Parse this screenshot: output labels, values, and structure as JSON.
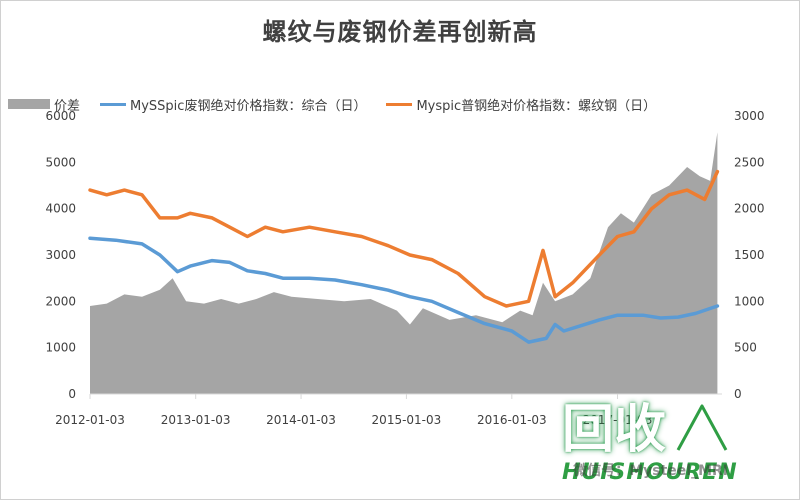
{
  "title": "螺纹与废钢价差再创新高",
  "watermark": {
    "logo_text": "回收",
    "brand": "HUISHOUREN",
    "caption": "微信号：Mysteel_MRI"
  },
  "chart_data": {
    "type": "area+line",
    "title": "螺纹与废钢价差再创新高",
    "legend_position": "top",
    "grid": false,
    "x_tick_labels": [
      "2012-01-03",
      "2013-01-03",
      "2014-01-03",
      "2015-01-03",
      "2016-01-03",
      "2017-01-03"
    ],
    "x_range": [
      "2012-01-03",
      "2017-12-31"
    ],
    "y_left": {
      "range": [
        0,
        6000
      ],
      "ticks": [
        0,
        1000,
        2000,
        3000,
        4000,
        5000,
        6000
      ]
    },
    "y_right": {
      "range": [
        0,
        3000
      ],
      "ticks": [
        0,
        500,
        1000,
        1500,
        2000,
        2500,
        3000
      ]
    },
    "series": [
      {
        "name": "价差",
        "kind": "area",
        "axis": "left",
        "color": "#a5a5a5",
        "points": [
          [
            "2012-01-03",
            1900
          ],
          [
            "2012-03-01",
            1950
          ],
          [
            "2012-05-01",
            2150
          ],
          [
            "2012-07-01",
            2100
          ],
          [
            "2012-09-01",
            2250
          ],
          [
            "2012-10-15",
            2500
          ],
          [
            "2012-12-01",
            2000
          ],
          [
            "2013-02-01",
            1950
          ],
          [
            "2013-04-01",
            2050
          ],
          [
            "2013-06-01",
            1950
          ],
          [
            "2013-08-01",
            2050
          ],
          [
            "2013-10-01",
            2200
          ],
          [
            "2013-12-01",
            2100
          ],
          [
            "2014-03-01",
            2050
          ],
          [
            "2014-06-01",
            2000
          ],
          [
            "2014-09-01",
            2050
          ],
          [
            "2014-12-01",
            1800
          ],
          [
            "2015-01-15",
            1500
          ],
          [
            "2015-03-01",
            1850
          ],
          [
            "2015-06-01",
            1600
          ],
          [
            "2015-09-01",
            1700
          ],
          [
            "2015-12-01",
            1550
          ],
          [
            "2016-02-01",
            1800
          ],
          [
            "2016-03-15",
            1700
          ],
          [
            "2016-04-20",
            2400
          ],
          [
            "2016-06-01",
            2000
          ],
          [
            "2016-08-01",
            2150
          ],
          [
            "2016-10-01",
            2500
          ],
          [
            "2016-12-01",
            3600
          ],
          [
            "2017-01-15",
            3900
          ],
          [
            "2017-03-01",
            3700
          ],
          [
            "2017-05-01",
            4300
          ],
          [
            "2017-07-01",
            4500
          ],
          [
            "2017-09-01",
            4900
          ],
          [
            "2017-10-15",
            4700
          ],
          [
            "2017-11-20",
            4600
          ],
          [
            "2017-12-15",
            5650
          ]
        ]
      },
      {
        "name": "MySSpic废钢绝对价格指数：综合（日）",
        "kind": "line",
        "axis": "right",
        "color": "#5b9bd5",
        "points": [
          [
            "2012-01-03",
            1680
          ],
          [
            "2012-04-01",
            1660
          ],
          [
            "2012-07-01",
            1620
          ],
          [
            "2012-09-01",
            1500
          ],
          [
            "2012-11-01",
            1320
          ],
          [
            "2012-12-15",
            1380
          ],
          [
            "2013-03-01",
            1440
          ],
          [
            "2013-05-01",
            1420
          ],
          [
            "2013-07-01",
            1330
          ],
          [
            "2013-09-01",
            1300
          ],
          [
            "2013-11-01",
            1250
          ],
          [
            "2014-02-01",
            1250
          ],
          [
            "2014-05-01",
            1230
          ],
          [
            "2014-08-01",
            1180
          ],
          [
            "2014-11-01",
            1120
          ],
          [
            "2015-01-15",
            1050
          ],
          [
            "2015-04-01",
            1000
          ],
          [
            "2015-07-01",
            880
          ],
          [
            "2015-10-01",
            760
          ],
          [
            "2016-01-03",
            680
          ],
          [
            "2016-03-01",
            560
          ],
          [
            "2016-05-01",
            600
          ],
          [
            "2016-06-01",
            750
          ],
          [
            "2016-07-01",
            680
          ],
          [
            "2016-09-01",
            740
          ],
          [
            "2016-11-01",
            800
          ],
          [
            "2017-01-03",
            850
          ],
          [
            "2017-04-01",
            850
          ],
          [
            "2017-06-01",
            820
          ],
          [
            "2017-08-01",
            830
          ],
          [
            "2017-10-01",
            870
          ],
          [
            "2017-12-15",
            950
          ]
        ]
      },
      {
        "name": "Myspic普钢绝对价格指数：螺纹钢（日）",
        "kind": "line",
        "axis": "right",
        "color": "#ed7d31",
        "points": [
          [
            "2012-01-03",
            2200
          ],
          [
            "2012-03-01",
            2150
          ],
          [
            "2012-05-01",
            2200
          ],
          [
            "2012-07-01",
            2150
          ],
          [
            "2012-09-01",
            1900
          ],
          [
            "2012-11-01",
            1900
          ],
          [
            "2012-12-15",
            1950
          ],
          [
            "2013-03-01",
            1900
          ],
          [
            "2013-05-01",
            1800
          ],
          [
            "2013-07-01",
            1700
          ],
          [
            "2013-09-01",
            1800
          ],
          [
            "2013-11-01",
            1750
          ],
          [
            "2014-02-01",
            1800
          ],
          [
            "2014-05-01",
            1750
          ],
          [
            "2014-08-01",
            1700
          ],
          [
            "2014-11-01",
            1600
          ],
          [
            "2015-01-15",
            1500
          ],
          [
            "2015-04-01",
            1450
          ],
          [
            "2015-07-01",
            1300
          ],
          [
            "2015-10-01",
            1050
          ],
          [
            "2015-12-15",
            950
          ],
          [
            "2016-03-01",
            1000
          ],
          [
            "2016-04-20",
            1550
          ],
          [
            "2016-06-01",
            1050
          ],
          [
            "2016-08-01",
            1200
          ],
          [
            "2016-11-01",
            1500
          ],
          [
            "2017-01-03",
            1700
          ],
          [
            "2017-03-01",
            1750
          ],
          [
            "2017-05-01",
            2000
          ],
          [
            "2017-07-01",
            2150
          ],
          [
            "2017-09-01",
            2200
          ],
          [
            "2017-11-01",
            2100
          ],
          [
            "2017-12-15",
            2400
          ]
        ]
      }
    ]
  }
}
